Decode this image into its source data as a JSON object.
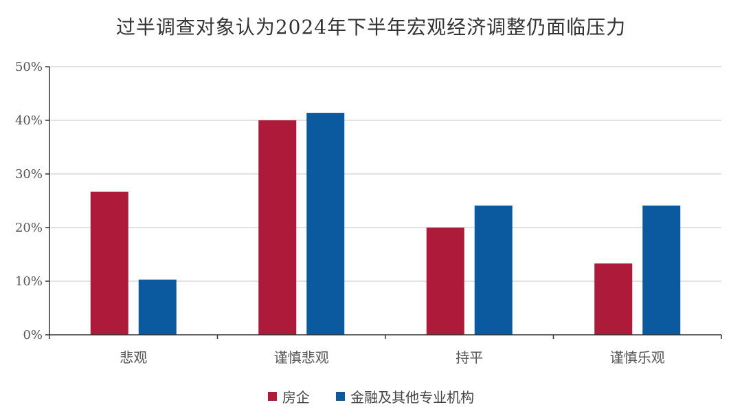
{
  "chart_data": {
    "type": "bar",
    "title": "过半调查对象认为2024年下半年宏观经济调整仍面临压力",
    "categories": [
      "悲观",
      "谨慎悲观",
      "持平",
      "谨慎乐观"
    ],
    "series": [
      {
        "name": "房企",
        "values": [
          26.7,
          40.0,
          20.0,
          13.3
        ],
        "color": "#AE1A3A"
      },
      {
        "name": "金融及其他专业机构",
        "values": [
          10.3,
          41.4,
          24.1,
          24.1
        ],
        "color": "#0B5AA0"
      }
    ],
    "ylim": [
      0,
      50
    ],
    "yticks": [
      "0%",
      "10%",
      "20%",
      "30%",
      "40%",
      "50%"
    ],
    "grid": true,
    "legend": "bottom"
  }
}
